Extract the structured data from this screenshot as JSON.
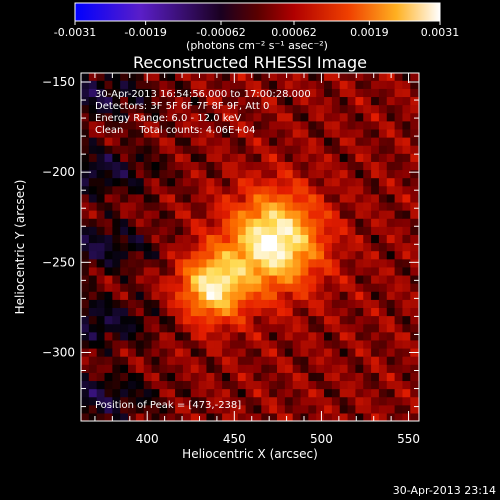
{
  "chart_data": {
    "type": "heatmap",
    "title": "Reconstructed RHESSI Image",
    "xlabel": "Heliocentric X (arcsec)",
    "ylabel": "Heliocentric Y (arcsec)",
    "xlim": [
      362,
      556
    ],
    "ylim": [
      -338,
      -145
    ],
    "x_ticks": [
      400,
      450,
      500,
      550
    ],
    "y_ticks": [
      -150,
      -200,
      -250,
      -300
    ],
    "colorbar": {
      "ticks": [
        "-0.0031",
        "-0.0019",
        "-0.00062",
        "0.00062",
        "0.0019",
        "0.0031"
      ],
      "unit_label": "(photons cm⁻² s⁻¹ asec⁻²)",
      "range": [
        -0.0031,
        0.0031
      ],
      "colors": [
        "#0000ff",
        "#5a1ec8",
        "#000000",
        "#8b0000",
        "#e61e00",
        "#ff7a00",
        "#ffd84a",
        "#ffffff"
      ]
    },
    "sources": [
      {
        "x": 473,
        "y": -238,
        "peak": 0.0031
      },
      {
        "x": 438,
        "y": -263,
        "peak": 0.0027
      }
    ],
    "peak_position": [
      473,
      -238
    ],
    "info_lines": [
      "30-Apr-2013 16:54:56.000 to 17:00:28.000",
      "Detectors: 3F 5F 6F 7F 8F 9F, Att 0",
      "Energy Range: 6.0 - 12.0 keV",
      "Clean     Total counts: 4.06E+04"
    ],
    "peak_label": "Position of Peak = [473,-238]",
    "timestamp": "30-Apr-2013 23:14"
  }
}
